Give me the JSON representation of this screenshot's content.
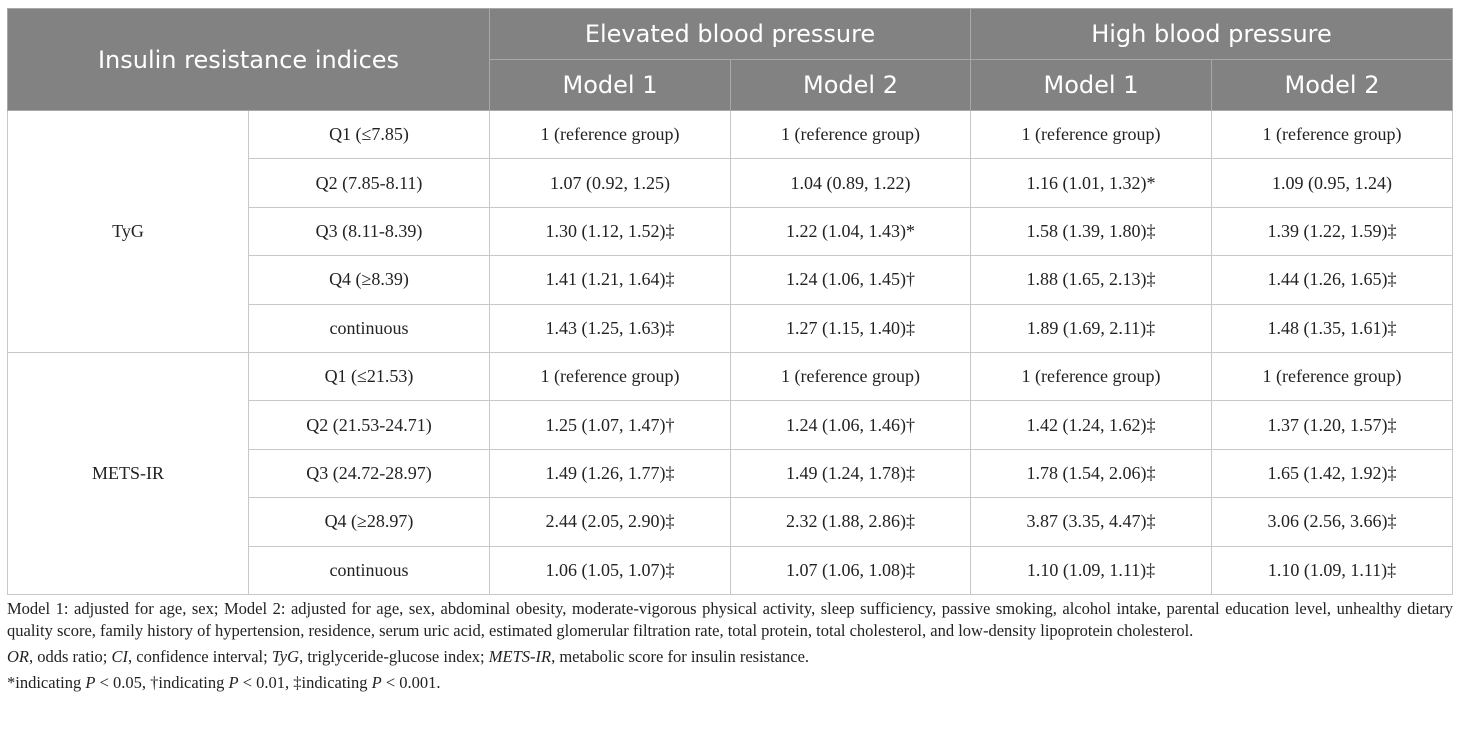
{
  "header": {
    "row_label": "Insulin resistance indices",
    "groups": [
      "Elevated blood pressure",
      "High blood pressure"
    ],
    "models": [
      "Model 1",
      "Model 2",
      "Model 1",
      "Model 2"
    ]
  },
  "sections": [
    {
      "name": "TyG",
      "rows": [
        {
          "q": "Q1 (≤7.85)",
          "c": [
            "1 (reference group)",
            "1 (reference group)",
            "1 (reference group)",
            "1 (reference group)"
          ]
        },
        {
          "q": "Q2 (7.85-8.11)",
          "c": [
            "1.07 (0.92, 1.25)",
            "1.04 (0.89, 1.22)",
            "1.16 (1.01, 1.32)*",
            "1.09 (0.95, 1.24)"
          ]
        },
        {
          "q": "Q3 (8.11-8.39)",
          "c": [
            "1.30 (1.12, 1.52)‡",
            "1.22 (1.04, 1.43)*",
            "1.58 (1.39, 1.80)‡",
            "1.39 (1.22, 1.59)‡"
          ]
        },
        {
          "q": "Q4 (≥8.39)",
          "c": [
            "1.41 (1.21, 1.64)‡",
            "1.24 (1.06, 1.45)†",
            "1.88 (1.65, 2.13)‡",
            "1.44 (1.26, 1.65)‡"
          ]
        },
        {
          "q": "continuous",
          "c": [
            "1.43 (1.25, 1.63)‡",
            "1.27 (1.15, 1.40)‡",
            "1.89 (1.69, 2.11)‡",
            "1.48 (1.35, 1.61)‡"
          ]
        }
      ]
    },
    {
      "name": "METS-IR",
      "rows": [
        {
          "q": "Q1 (≤21.53)",
          "c": [
            "1 (reference group)",
            "1 (reference group)",
            "1 (reference group)",
            "1 (reference group)"
          ]
        },
        {
          "q": "Q2 (21.53-24.71)",
          "c": [
            "1.25 (1.07, 1.47)†",
            "1.24 (1.06, 1.46)†",
            "1.42 (1.24, 1.62)‡",
            "1.37 (1.20, 1.57)‡"
          ]
        },
        {
          "q": "Q3 (24.72-28.97)",
          "c": [
            "1.49 (1.26, 1.77)‡",
            "1.49 (1.24, 1.78)‡",
            "1.78 (1.54, 2.06)‡",
            "1.65 (1.42, 1.92)‡"
          ]
        },
        {
          "q": "Q4 (≥28.97)",
          "c": [
            "2.44 (2.05, 2.90)‡",
            "2.32 (1.88, 2.86)‡",
            "3.87 (3.35, 4.47)‡",
            "3.06 (2.56, 3.66)‡"
          ]
        },
        {
          "q": "continuous",
          "c": [
            "1.06 (1.05, 1.07)‡",
            "1.07 (1.06, 1.08)‡",
            "1.10 (1.09, 1.11)‡",
            "1.10 (1.09, 1.11)‡"
          ]
        }
      ]
    }
  ],
  "notes": {
    "models": "Model 1: adjusted for age, sex; Model 2: adjusted for age, sex, abdominal obesity, moderate-vigorous physical activity, sleep sufficiency, passive smoking, alcohol intake, parental education level, unhealthy dietary quality score, family history of hypertension, residence, serum uric acid, estimated glomerular filtration rate, total protein, total cholesterol, and low-density lipoprotein cholesterol.",
    "abbr": [
      {
        "term": "OR",
        "def": ", odds ratio; "
      },
      {
        "term": "CI",
        "def": ", confidence interval; "
      },
      {
        "term": "TyG",
        "def": ", triglyceride-glucose index; "
      },
      {
        "term": "METS-IR",
        "def": ", metabolic score for insulin resistance."
      }
    ],
    "sig": [
      {
        "mark": "*indicating ",
        "p": "P",
        "cmp": " < 0.05, "
      },
      {
        "mark": "†indicating ",
        "p": "P",
        "cmp": " < 0.01, "
      },
      {
        "mark": "‡indicating ",
        "p": "P",
        "cmp": " < 0.001."
      }
    ]
  }
}
